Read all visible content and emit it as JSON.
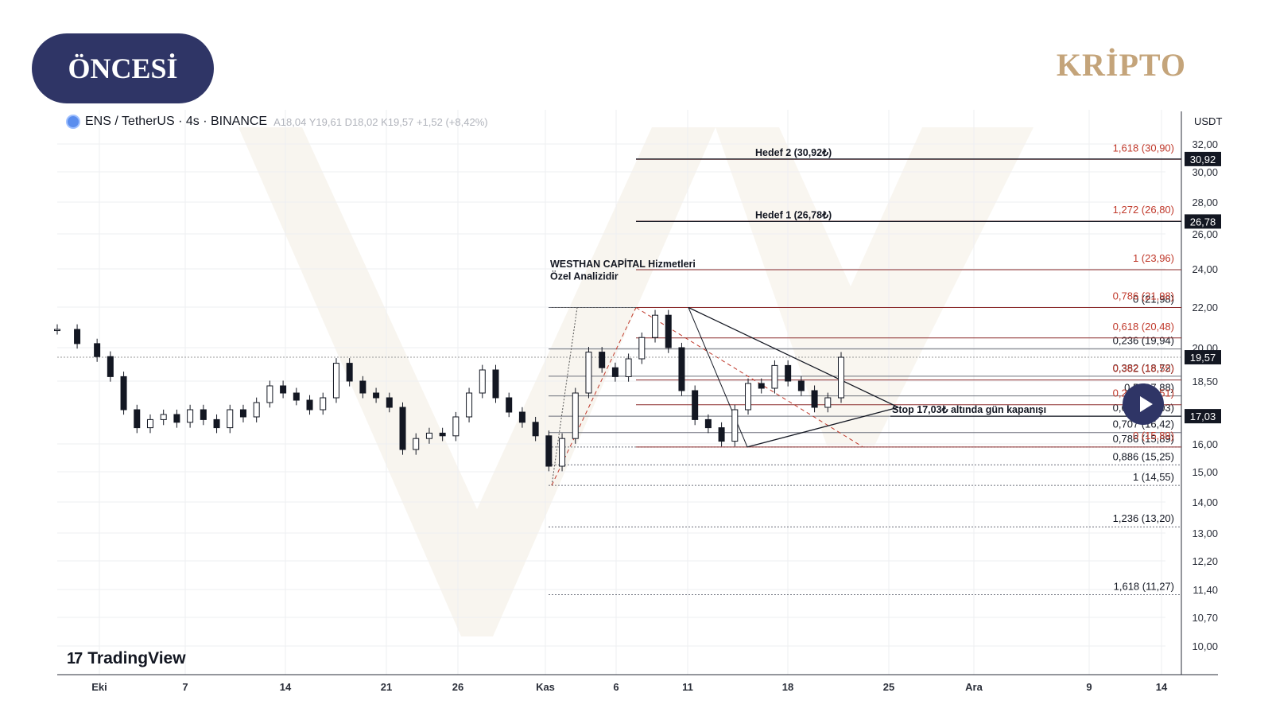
{
  "badge": {
    "label": "ÖNCESİ"
  },
  "brand": {
    "label": "KRİPTO"
  },
  "header": {
    "symbol": "ENS / TetherUS · 4s · BINANCE",
    "o_label": "A",
    "o_value": "18,04",
    "h_label": "Y",
    "h_value": "19,61",
    "l_label": "D",
    "l_value": "18,02",
    "c_label": "K",
    "c_value": "19,57",
    "change": "+1,52 (+8,42%)"
  },
  "watermark": {
    "label": "TradingView"
  },
  "chart_data": {
    "type": "candlestick",
    "unit": "USDT",
    "y_ticks": [
      "32,00",
      "30,00",
      "28,00",
      "26,00",
      "24,00",
      "22,00",
      "20,00",
      "18,50",
      "16,00",
      "15,00",
      "14,00",
      "13,00",
      "12,20",
      "11,40",
      "10,70",
      "10,00"
    ],
    "x_ticks": [
      "Eki",
      "7",
      "14",
      "21",
      "26",
      "Kas",
      "6",
      "11",
      "18",
      "25",
      "Ara",
      "9",
      "14"
    ],
    "price_tags": [
      {
        "label": "30,92",
        "value": 30.92,
        "color": "#131722"
      },
      {
        "label": "26,78",
        "value": 26.78,
        "color": "#131722"
      },
      {
        "label": "19,57",
        "value": 19.57,
        "color": "#131722"
      },
      {
        "label": "17,03",
        "value": 17.03,
        "color": "#131722"
      }
    ],
    "annotations": [
      {
        "text": "WESTHAN CAPİTAL Hizmetleri",
        "value": 24.0
      },
      {
        "text": "Özel Analizidir",
        "value": 23.35
      },
      {
        "text": "Hedef 2 (30,92₺)",
        "value": 30.92
      },
      {
        "text": "Hedef 1 (26,78₺)",
        "value": 26.78
      },
      {
        "text": "Stop 17,03₺ altında gün kapanışı",
        "value": 17.03
      }
    ],
    "red_fib_levels": [
      {
        "label": "1,618 (30,90)",
        "value": 30.9
      },
      {
        "label": "1,272 (26,80)",
        "value": 26.8
      },
      {
        "label": "1 (23,96)",
        "value": 23.96
      },
      {
        "label": "0,786 (21,98)",
        "value": 21.98
      },
      {
        "label": "0,618 (20,48)",
        "value": 20.48
      },
      {
        "label": "0,382 (18,55)",
        "value": 18.55
      },
      {
        "label": "0,236 (17,51)",
        "value": 17.51
      },
      {
        "label": "0 (15,89)",
        "value": 15.89
      }
    ],
    "black_fib_levels": [
      {
        "label": "0 (21,98)",
        "value": 21.98
      },
      {
        "label": "0,236 (19,94)",
        "value": 19.94
      },
      {
        "label": "0,382 (18,72)",
        "value": 18.72
      },
      {
        "label": "0,5 (17,88)",
        "value": 17.88
      },
      {
        "label": "0,618 (17,03)",
        "value": 17.03
      },
      {
        "label": "0,707 (16,42)",
        "value": 16.42
      },
      {
        "label": "0,786 (15,89)",
        "value": 15.89
      },
      {
        "label": "0,886 (15,25)",
        "value": 15.25
      },
      {
        "label": "1 (14,55)",
        "value": 14.55
      },
      {
        "label": "1,236 (13,20)",
        "value": 13.2
      },
      {
        "label": "1,618 (11,27)",
        "value": 11.27
      }
    ],
    "price_path": [
      [
        0,
        20.9
      ],
      [
        3,
        20.2
      ],
      [
        6,
        19.6
      ],
      [
        8,
        18.7
      ],
      [
        10,
        17.3
      ],
      [
        12,
        16.6
      ],
      [
        14,
        16.9
      ],
      [
        16,
        17.1
      ],
      [
        18,
        16.8
      ],
      [
        20,
        17.3
      ],
      [
        22,
        16.9
      ],
      [
        24,
        16.6
      ],
      [
        26,
        17.3
      ],
      [
        28,
        17.0
      ],
      [
        30,
        17.6
      ],
      [
        32,
        18.3
      ],
      [
        34,
        18.0
      ],
      [
        36,
        17.7
      ],
      [
        38,
        17.3
      ],
      [
        40,
        17.8
      ],
      [
        42,
        19.3
      ],
      [
        44,
        18.5
      ],
      [
        46,
        18.0
      ],
      [
        48,
        17.8
      ],
      [
        50,
        17.4
      ],
      [
        52,
        15.8
      ],
      [
        54,
        16.2
      ],
      [
        56,
        16.4
      ],
      [
        58,
        16.3
      ],
      [
        60,
        17.0
      ],
      [
        62,
        18.0
      ],
      [
        64,
        19.0
      ],
      [
        66,
        17.8
      ],
      [
        68,
        17.2
      ],
      [
        70,
        16.8
      ],
      [
        72,
        16.3
      ],
      [
        74,
        15.2
      ],
      [
        76,
        16.2
      ],
      [
        78,
        18.0
      ],
      [
        80,
        19.8
      ],
      [
        82,
        19.1
      ],
      [
        84,
        18.7
      ],
      [
        86,
        19.5
      ],
      [
        88,
        20.5
      ],
      [
        90,
        21.6
      ],
      [
        92,
        20.0
      ],
      [
        94,
        18.1
      ],
      [
        96,
        16.9
      ],
      [
        98,
        16.6
      ],
      [
        100,
        16.1
      ],
      [
        102,
        17.3
      ],
      [
        104,
        18.4
      ],
      [
        106,
        18.2
      ],
      [
        108,
        19.2
      ],
      [
        110,
        18.5
      ],
      [
        112,
        18.1
      ],
      [
        114,
        17.4
      ],
      [
        116,
        17.8
      ],
      [
        118,
        19.57
      ]
    ]
  }
}
